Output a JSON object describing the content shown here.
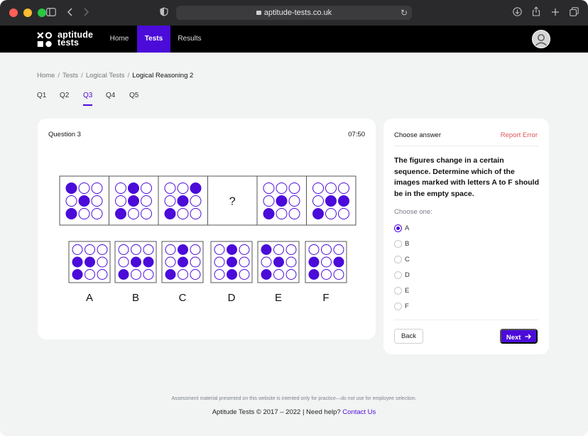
{
  "browser": {
    "url": "aptitude-tests.co.uk",
    "icons": [
      "sidebar-icon",
      "back-icon",
      "forward-icon",
      "shield-icon",
      "lock-icon",
      "reload-icon",
      "download-icon",
      "share-icon",
      "new-tab-icon",
      "tabs-overview-icon"
    ]
  },
  "header": {
    "logo_line1": "aptitude",
    "logo_line2": "tests",
    "nav": [
      {
        "label": "Home",
        "active": false
      },
      {
        "label": "Tests",
        "active": true
      },
      {
        "label": "Results",
        "active": false
      }
    ],
    "accent": "#4b0bd9"
  },
  "breadcrumb": [
    "Home",
    "Tests",
    "Logical Tests",
    "Logical Reasoning 2"
  ],
  "question_tabs": [
    {
      "label": "Q1",
      "active": false
    },
    {
      "label": "Q2",
      "active": false
    },
    {
      "label": "Q3",
      "active": true
    },
    {
      "label": "Q4",
      "active": false
    },
    {
      "label": "Q5",
      "active": false
    }
  ],
  "question": {
    "title": "Question 3",
    "timer": "07:50",
    "missing_symbol": "?",
    "sequence": [
      [
        1,
        0,
        0,
        0,
        1,
        0,
        1,
        0,
        0
      ],
      [
        0,
        1,
        0,
        0,
        1,
        0,
        1,
        0,
        0
      ],
      [
        0,
        0,
        1,
        0,
        1,
        0,
        1,
        0,
        0
      ],
      null,
      [
        0,
        0,
        0,
        0,
        1,
        0,
        1,
        0,
        0
      ],
      [
        0,
        0,
        0,
        0,
        1,
        1,
        1,
        0,
        0
      ]
    ],
    "options": [
      {
        "letter": "A",
        "dots": [
          0,
          0,
          0,
          1,
          1,
          0,
          1,
          0,
          0
        ]
      },
      {
        "letter": "B",
        "dots": [
          0,
          0,
          0,
          0,
          1,
          1,
          1,
          0,
          0
        ]
      },
      {
        "letter": "C",
        "dots": [
          0,
          1,
          0,
          0,
          1,
          0,
          1,
          0,
          0
        ]
      },
      {
        "letter": "D",
        "dots": [
          0,
          1,
          0,
          0,
          1,
          0,
          0,
          1,
          0
        ]
      },
      {
        "letter": "E",
        "dots": [
          1,
          0,
          0,
          0,
          1,
          0,
          1,
          0,
          0
        ]
      },
      {
        "letter": "F",
        "dots": [
          0,
          0,
          0,
          1,
          0,
          1,
          1,
          0,
          0
        ]
      }
    ],
    "dot_color": "#4b0bd9"
  },
  "answer_panel": {
    "heading": "Choose answer",
    "report": "Report Error",
    "prompt": "The figures change in a certain sequence. Determine which of the images marked with letters A to F should be in the empty space.",
    "choose_one": "Choose one:",
    "options": [
      "A",
      "B",
      "C",
      "D",
      "E",
      "F"
    ],
    "selected": "A",
    "back": "Back",
    "next": "Next"
  },
  "footer": {
    "disclaimer": "Assessment material presented on this website is intented only for practice—do not use for employee selection.",
    "copyright": "Aptitude Tests © 2017 – 2022 | Need help?",
    "contact": "Contact Us"
  }
}
